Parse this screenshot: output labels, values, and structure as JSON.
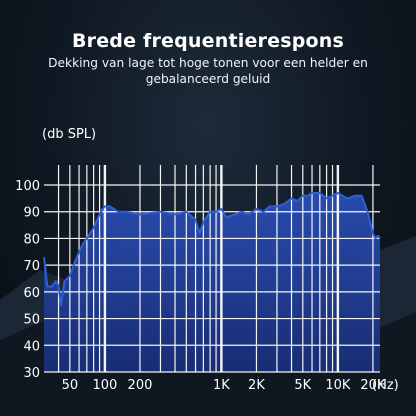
{
  "headline": "Brede frequentierespons",
  "subheadline": "Dekking van lage tot hoge tonen voor een helder en gebalanceerd geluid",
  "colors": {
    "grid": "#ffffff",
    "curve": "#2f5fd6",
    "fill_top": "#2a4fb8",
    "fill_bottom": "#1a2f7a",
    "text": "#ffffff"
  },
  "chart_data": {
    "type": "area",
    "xscale": "log",
    "xlim": [
      30,
      23000
    ],
    "ylim": [
      30,
      100
    ],
    "ylabel": "(db SPL)",
    "xunit": "(Hz)",
    "y_ticks": [
      100,
      90,
      80,
      70,
      60,
      50,
      40,
      30
    ],
    "x_tick_labels": [
      {
        "value": 50,
        "label": "50"
      },
      {
        "value": 100,
        "label": "100"
      },
      {
        "value": 200,
        "label": "200"
      },
      {
        "value": 1000,
        "label": "1K"
      },
      {
        "value": 2000,
        "label": "2K"
      },
      {
        "value": 5000,
        "label": "5K"
      },
      {
        "value": 10000,
        "label": "10K"
      },
      {
        "value": 20000,
        "label": "20K"
      }
    ],
    "x_gridlines": [
      40,
      50,
      60,
      70,
      80,
      90,
      100,
      200,
      300,
      400,
      500,
      600,
      700,
      800,
      900,
      1000,
      2000,
      3000,
      4000,
      5000,
      6000,
      7000,
      8000,
      9000,
      10000,
      20000
    ],
    "grid": true,
    "x": [
      30,
      32,
      35,
      38,
      40,
      42,
      45,
      50,
      55,
      60,
      65,
      70,
      80,
      90,
      95,
      100,
      110,
      130,
      150,
      200,
      300,
      400,
      500,
      600,
      650,
      700,
      800,
      900,
      1000,
      1100,
      1300,
      1500,
      1700,
      2000,
      2300,
      2600,
      3000,
      3500,
      4000,
      4500,
      5000,
      5500,
      6000,
      7000,
      8000,
      9000,
      10000,
      12000,
      14000,
      16000,
      18000,
      20000,
      21000,
      22000,
      23000
    ],
    "y": [
      73,
      62,
      62,
      64,
      62,
      55,
      64,
      66,
      71,
      75,
      78,
      80,
      84,
      89,
      91,
      92,
      92,
      90,
      90,
      89,
      90,
      89,
      90,
      87,
      82,
      86,
      90,
      90,
      91,
      88,
      89,
      90,
      89,
      91,
      90,
      92,
      92,
      93,
      95,
      94,
      96,
      96,
      97,
      97,
      95,
      96,
      97,
      95,
      96,
      96,
      90,
      82,
      80,
      81,
      80
    ]
  }
}
